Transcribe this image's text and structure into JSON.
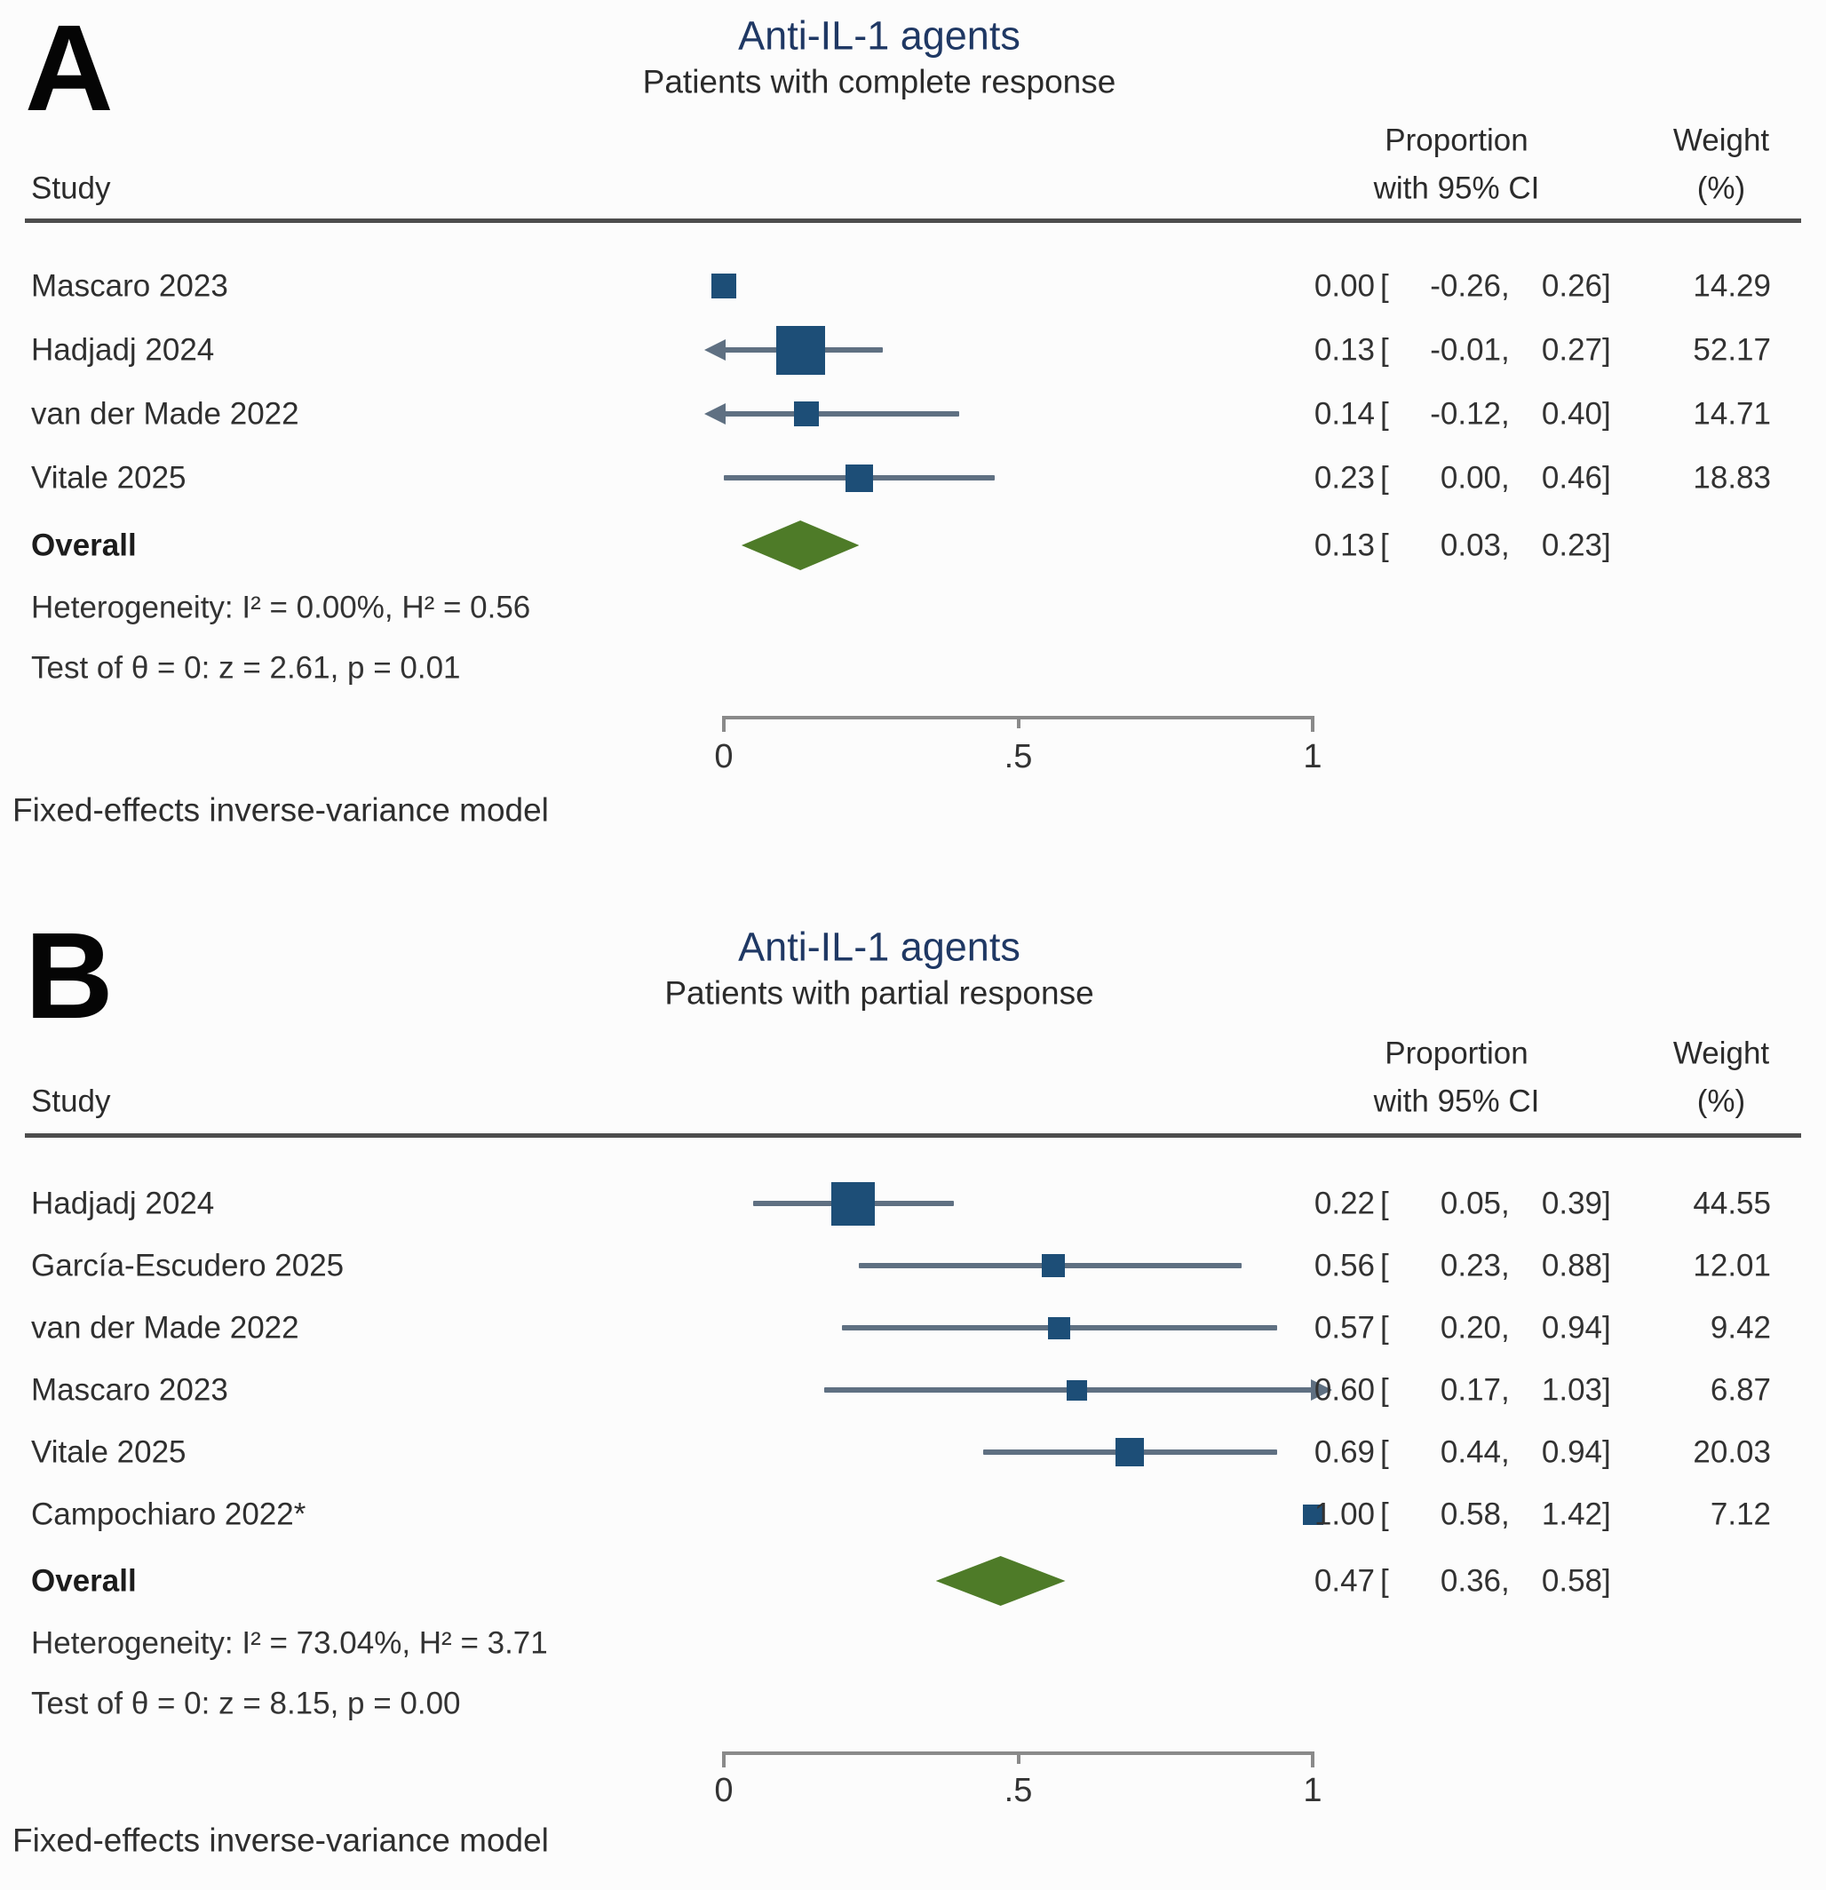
{
  "figure": {
    "colors": {
      "title": "#1f3864",
      "text": "#303030",
      "marker": "#1d4e77",
      "ci_line": "#5f7082",
      "diamond": "#4e7b28",
      "rule": "#4d4d4d",
      "axis": "#8a8a8a"
    }
  },
  "chart_data": [
    {
      "type": "forest",
      "panel": "A",
      "title": "Anti-IL-1 agents",
      "subtitle": "Patients with complete response",
      "columns": {
        "study": "Study",
        "proportion": [
          "Proportion",
          "with 95% CI"
        ],
        "weight": [
          "Weight",
          "(%)"
        ]
      },
      "x_axis": {
        "range": [
          0,
          1
        ],
        "ticks": [
          0,
          0.5,
          1
        ],
        "tick_labels": [
          "0",
          ".5",
          "1"
        ]
      },
      "studies": [
        {
          "label": "Mascaro 2023",
          "est": 0.0,
          "lo": -0.26,
          "hi": 0.26,
          "weight": 14.29,
          "line": null
        },
        {
          "label": "Hadjadj 2024",
          "est": 0.13,
          "lo": -0.01,
          "hi": 0.27,
          "weight": 52.17,
          "line": {
            "from": 0.0,
            "to": 0.27,
            "left_arrow": true,
            "right_arrow": false
          }
        },
        {
          "label": "van der Made 2022",
          "est": 0.14,
          "lo": -0.12,
          "hi": 0.4,
          "weight": 14.71,
          "line": {
            "from": 0.0,
            "to": 0.4,
            "left_arrow": true,
            "right_arrow": false
          }
        },
        {
          "label": "Vitale 2025",
          "est": 0.23,
          "lo": 0.0,
          "hi": 0.46,
          "weight": 18.83,
          "line": {
            "from": 0.0,
            "to": 0.46,
            "left_arrow": false,
            "right_arrow": false
          }
        }
      ],
      "overall": {
        "label": "Overall",
        "est": 0.13,
        "lo": 0.03,
        "hi": 0.23
      },
      "heterogeneity": "Heterogeneity: I² = 0.00%, H² = 0.56",
      "test": "Test of θ = 0: z = 2.61, p = 0.01",
      "footnote": "Fixed-effects inverse-variance model"
    },
    {
      "type": "forest",
      "panel": "B",
      "title": "Anti-IL-1 agents",
      "subtitle": "Patients with partial response",
      "columns": {
        "study": "Study",
        "proportion": [
          "Proportion",
          "with 95% CI"
        ],
        "weight": [
          "Weight",
          "(%)"
        ]
      },
      "x_axis": {
        "range": [
          0,
          1
        ],
        "ticks": [
          0,
          0.5,
          1
        ],
        "tick_labels": [
          "0",
          ".5",
          "1"
        ]
      },
      "studies": [
        {
          "label": "Hadjadj 2024",
          "est": 0.22,
          "lo": 0.05,
          "hi": 0.39,
          "weight": 44.55,
          "line": {
            "from": 0.05,
            "to": 0.39,
            "left_arrow": false,
            "right_arrow": false
          }
        },
        {
          "label": "García-Escudero 2025",
          "est": 0.56,
          "lo": 0.23,
          "hi": 0.88,
          "weight": 12.01,
          "line": {
            "from": 0.23,
            "to": 0.88,
            "left_arrow": false,
            "right_arrow": false
          }
        },
        {
          "label": "van der Made 2022",
          "est": 0.57,
          "lo": 0.2,
          "hi": 0.94,
          "weight": 9.42,
          "line": {
            "from": 0.2,
            "to": 0.94,
            "left_arrow": false,
            "right_arrow": false
          }
        },
        {
          "label": "Mascaro 2023",
          "est": 0.6,
          "lo": 0.17,
          "hi": 1.03,
          "weight": 6.87,
          "line": {
            "from": 0.17,
            "to": 1.0,
            "left_arrow": false,
            "right_arrow": true
          }
        },
        {
          "label": "Vitale 2025",
          "est": 0.69,
          "lo": 0.44,
          "hi": 0.94,
          "weight": 20.03,
          "line": {
            "from": 0.44,
            "to": 0.94,
            "left_arrow": false,
            "right_arrow": false
          }
        },
        {
          "label": "Campochiaro 2022*",
          "est": 1.0,
          "lo": 0.58,
          "hi": 1.42,
          "weight": 7.12,
          "line": null
        }
      ],
      "overall": {
        "label": "Overall",
        "est": 0.47,
        "lo": 0.36,
        "hi": 0.58
      },
      "heterogeneity": "Heterogeneity: I² = 73.04%, H² = 3.71",
      "test": "Test of θ = 0: z = 8.15, p = 0.00",
      "footnote": "Fixed-effects inverse-variance model"
    }
  ]
}
